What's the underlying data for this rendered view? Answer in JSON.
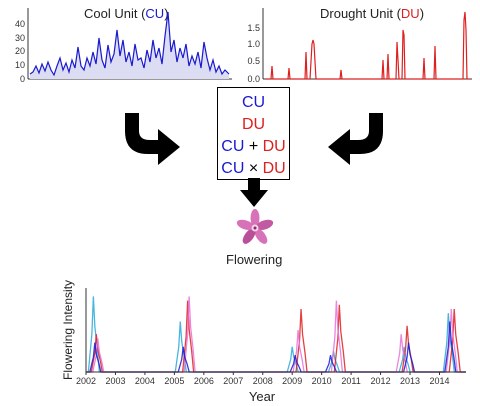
{
  "cool_unit": {
    "title_prefix": "Cool Unit (",
    "abbr": "CU",
    "title_suffix": ")",
    "y_ticks": [
      "0",
      "10",
      "20",
      "30",
      "40"
    ],
    "color": "#1a1ad0"
  },
  "drought_unit": {
    "title_prefix": "Drought Unit (",
    "abbr": "DU",
    "title_suffix": ")",
    "y_ticks": [
      "0.0",
      "0.5",
      "1.0",
      "1.5"
    ],
    "color": "#dd2020"
  },
  "models": {
    "cu": "CU",
    "du": "DU",
    "plus": "+",
    "times": "×"
  },
  "outcome_label": "Flowering",
  "chart_data": {
    "type": "line",
    "title": "",
    "xlabel": "Year",
    "ylabel": "Flowering Intensity",
    "x_tick_labels": [
      "2002",
      "2003",
      "2004",
      "2005",
      "2006",
      "2007",
      "2008",
      "2009",
      "2010",
      "2011",
      "2012",
      "2013",
      "2014"
    ],
    "xlim": [
      2002,
      2014.9
    ],
    "ylim": [
      0,
      1.0
    ],
    "grid": false,
    "series": [
      {
        "color": "#2aa8d8",
        "points": [
          [
            2002.25,
            0.9
          ],
          [
            2005.2,
            0.6
          ],
          [
            2009.0,
            0.3
          ],
          [
            2010.4,
            0.25
          ],
          [
            2012.8,
            0.3
          ],
          [
            2014.3,
            0.7
          ]
        ]
      },
      {
        "color": "#dd2020",
        "points": [
          [
            2002.35,
            0.45
          ],
          [
            2005.45,
            0.85
          ],
          [
            2009.3,
            0.75
          ],
          [
            2010.6,
            0.8
          ],
          [
            2012.9,
            0.55
          ],
          [
            2014.5,
            0.75
          ]
        ]
      },
      {
        "color": "#e870d8",
        "points": [
          [
            2002.4,
            0.4
          ],
          [
            2005.5,
            0.9
          ],
          [
            2009.2,
            0.5
          ],
          [
            2010.5,
            0.85
          ],
          [
            2012.7,
            0.45
          ],
          [
            2014.4,
            0.75
          ]
        ]
      },
      {
        "color": "#1a1ad0",
        "points": [
          [
            2002.3,
            0.35
          ],
          [
            2005.3,
            0.3
          ],
          [
            2009.1,
            0.2
          ],
          [
            2010.3,
            0.2
          ],
          [
            2012.95,
            0.35
          ],
          [
            2014.35,
            0.6
          ]
        ]
      }
    ]
  }
}
